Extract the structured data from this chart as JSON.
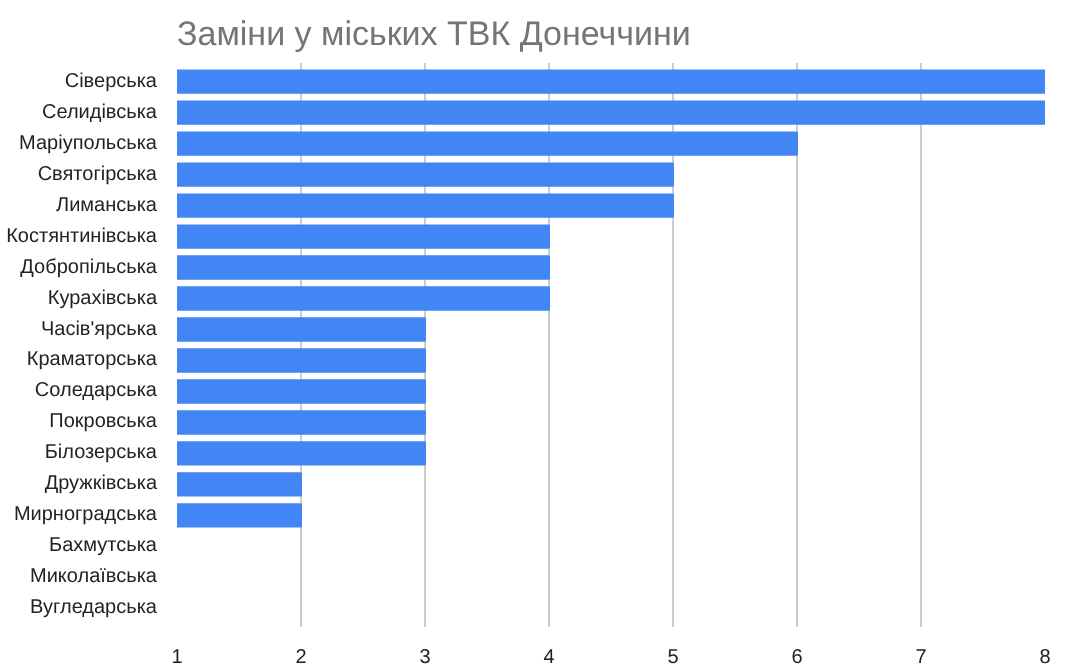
{
  "chart_data": {
    "type": "bar",
    "orientation": "horizontal",
    "title": "Заміни у міських ТВК Донеччини",
    "categories": [
      "Сіверська",
      "Селидівська",
      "Маріупольська",
      "Святогірська",
      "Лиманська",
      "Костянтинівська",
      "Добропільська",
      "Курахівська",
      "Часів'ярська",
      "Краматорська",
      "Соледарська",
      "Покровська",
      "Білозерська",
      "Дружківська",
      "Мирноградська",
      "Бахмутська",
      "Миколаївська",
      "Вугледарська"
    ],
    "values": [
      8,
      8,
      6,
      5,
      5,
      4,
      4,
      4,
      3,
      3,
      3,
      3,
      3,
      2,
      2,
      null,
      null,
      null
    ],
    "color": "#4285f4",
    "xlim": [
      1,
      8
    ],
    "xticks": [
      1,
      2,
      3,
      4,
      5,
      6,
      7,
      8
    ],
    "grid": "x"
  }
}
